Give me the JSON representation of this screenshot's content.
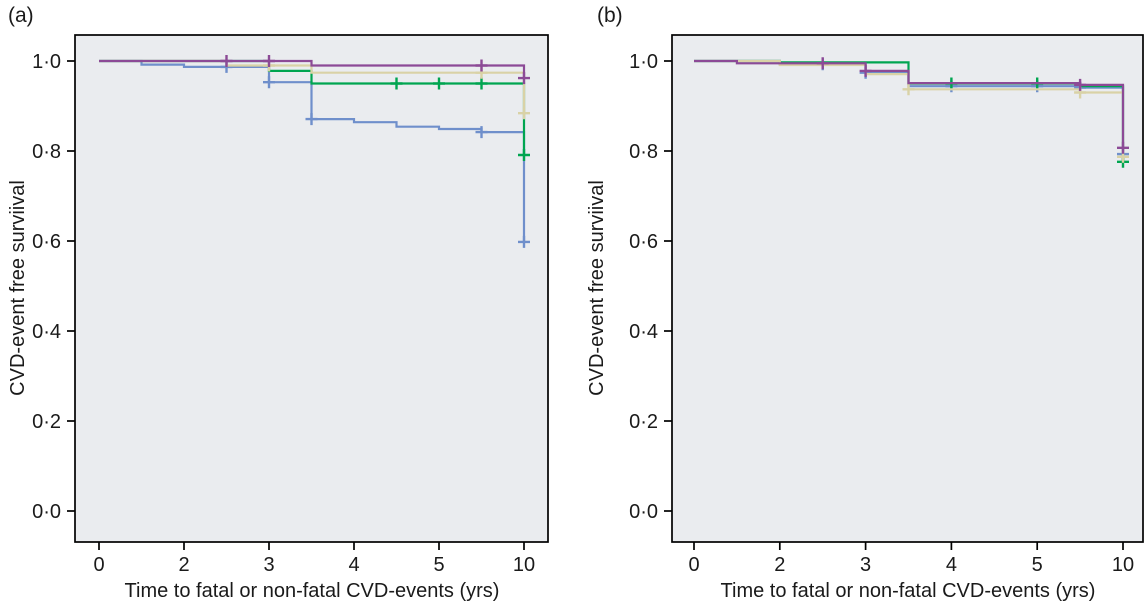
{
  "page": {
    "background": "#ffffff",
    "text_color": "#1a1a1a"
  },
  "chart_data": [
    {
      "id": "a",
      "panel_label": "(a)",
      "type": "line",
      "subtype": "kaplan-meier-step",
      "title": "",
      "xlabel": "Time to fatal or non-fatal CVD-events (yrs)",
      "ylabel": "CVD-event free surviival",
      "x_tick_years": [
        0,
        2,
        3,
        4,
        5,
        10
      ],
      "x_tick_labels": [
        "0",
        "2",
        "3",
        "4",
        "5",
        "10"
      ],
      "y_ticks": [
        1.0,
        0.8,
        0.6,
        0.4,
        0.2,
        0.0
      ],
      "y_tick_labels": [
        "1·0",
        "0·8",
        "0·6",
        "0·4",
        "0·2",
        "0·0"
      ],
      "ylim": [
        -0.07,
        1.06
      ],
      "grid": false,
      "legend": "none",
      "plot_bg": "#eaecef",
      "axis_color": "#000000",
      "series": [
        {
          "name": "blue",
          "color": "#6f8fcb",
          "steps": [
            [
              0,
              1.0
            ],
            [
              1,
              0.992
            ],
            [
              2,
              0.987
            ],
            [
              3,
              0.953
            ],
            [
              3.5,
              0.871
            ],
            [
              4,
              0.864
            ],
            [
              4.5,
              0.854
            ],
            [
              5,
              0.849
            ],
            [
              7.5,
              0.842
            ],
            [
              10,
              0.598
            ]
          ],
          "censors": [
            [
              2.5,
              0.987
            ],
            [
              3,
              0.953
            ],
            [
              3.5,
              0.871
            ],
            [
              7.5,
              0.842
            ],
            [
              10,
              0.598
            ]
          ]
        },
        {
          "name": "green",
          "color": "#00a550",
          "steps": [
            [
              0,
              1.0
            ],
            [
              3,
              0.978
            ],
            [
              3.5,
              0.95
            ],
            [
              10,
              0.791
            ]
          ],
          "censors": [
            [
              4.5,
              0.95
            ],
            [
              5,
              0.95
            ],
            [
              7.5,
              0.95
            ],
            [
              10,
              0.791
            ]
          ]
        },
        {
          "name": "tan",
          "color": "#d9d2a6",
          "steps": [
            [
              0,
              1.0
            ],
            [
              2.5,
              0.99
            ],
            [
              3.5,
              0.974
            ],
            [
              10,
              0.884
            ]
          ],
          "censors": [
            [
              3,
              0.99
            ],
            [
              7.5,
              0.974
            ],
            [
              10,
              0.884
            ]
          ]
        },
        {
          "name": "purple",
          "color": "#8c4a96",
          "steps": [
            [
              0,
              1.0
            ],
            [
              3.5,
              0.99
            ],
            [
              10,
              0.962
            ]
          ],
          "censors": [
            [
              2.5,
              1.0
            ],
            [
              3,
              1.0
            ],
            [
              7.5,
              0.99
            ],
            [
              10,
              0.962
            ]
          ]
        }
      ]
    },
    {
      "id": "b",
      "panel_label": "(b)",
      "type": "line",
      "subtype": "kaplan-meier-step",
      "title": "",
      "xlabel": "Time to fatal or non-fatal CVD-events (yrs)",
      "ylabel": "CVD-event free surviival",
      "x_tick_years": [
        0,
        2,
        3,
        4,
        5,
        10
      ],
      "x_tick_labels": [
        "0",
        "2",
        "3",
        "4",
        "5",
        "10"
      ],
      "y_ticks": [
        1.0,
        0.8,
        0.6,
        0.4,
        0.2,
        0.0
      ],
      "y_tick_labels": [
        "1·0",
        "0·8",
        "0·6",
        "0·4",
        "0·2",
        "0·0"
      ],
      "ylim": [
        -0.07,
        1.06
      ],
      "grid": false,
      "legend": "none",
      "plot_bg": "#eaecef",
      "axis_color": "#000000",
      "series": [
        {
          "name": "blue",
          "color": "#6f8fcb",
          "steps": [
            [
              0,
              1.0
            ],
            [
              2,
              0.993
            ],
            [
              3,
              0.974
            ],
            [
              3.5,
              0.944
            ],
            [
              7.5,
              0.941
            ],
            [
              10,
              0.793
            ]
          ],
          "censors": [
            [
              2.5,
              0.993
            ],
            [
              3,
              0.974
            ],
            [
              4,
              0.944
            ],
            [
              5,
              0.944
            ],
            [
              7.5,
              0.941
            ],
            [
              10,
              0.793
            ]
          ]
        },
        {
          "name": "green",
          "color": "#00a550",
          "steps": [
            [
              0,
              1.0
            ],
            [
              2,
              0.997
            ],
            [
              3.5,
              0.95
            ],
            [
              7.5,
              0.944
            ],
            [
              10,
              0.776
            ]
          ],
          "censors": [
            [
              4,
              0.95
            ],
            [
              5,
              0.95
            ],
            [
              10,
              0.776
            ]
          ]
        },
        {
          "name": "tan",
          "color": "#d9d2a6",
          "steps": [
            [
              0,
              1.0
            ],
            [
              2,
              0.991
            ],
            [
              3,
              0.971
            ],
            [
              3.5,
              0.937
            ],
            [
              7.5,
              0.93
            ],
            [
              10,
              0.787
            ]
          ],
          "censors": [
            [
              3.5,
              0.937
            ],
            [
              7.5,
              0.93
            ],
            [
              10,
              0.787
            ]
          ]
        },
        {
          "name": "purple",
          "color": "#8c4a96",
          "steps": [
            [
              0,
              1.0
            ],
            [
              1,
              0.995
            ],
            [
              3,
              0.978
            ],
            [
              3.5,
              0.951
            ],
            [
              7.5,
              0.947
            ],
            [
              10,
              0.807
            ]
          ],
          "censors": [
            [
              2.5,
              0.995
            ],
            [
              3,
              0.978
            ],
            [
              7.5,
              0.947
            ],
            [
              10,
              0.807
            ]
          ]
        }
      ]
    }
  ]
}
